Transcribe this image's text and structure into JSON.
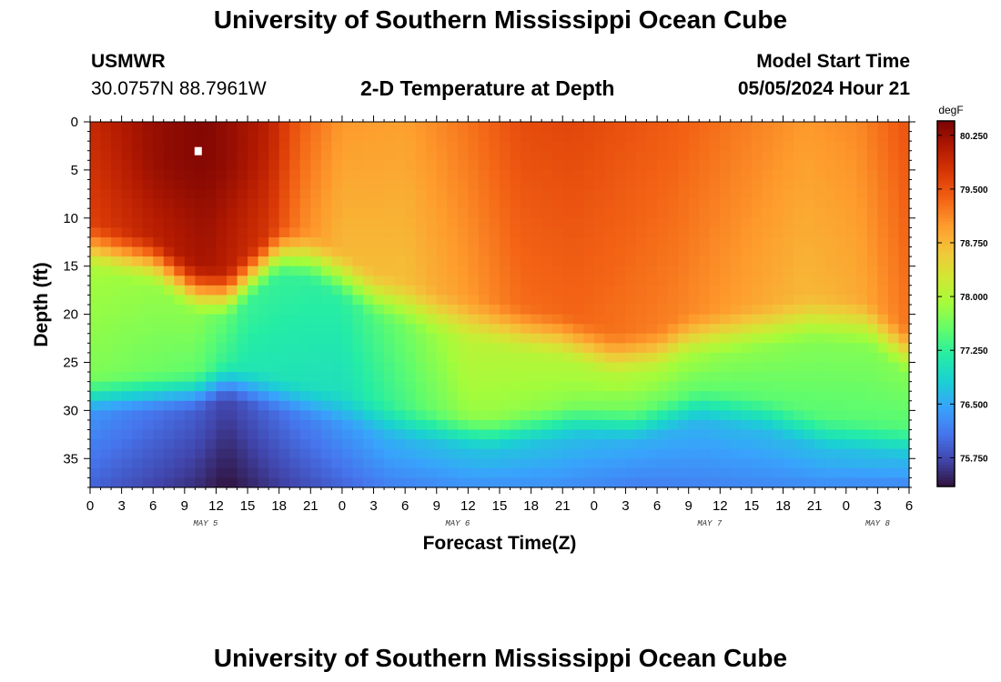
{
  "page": {
    "title": "University of Southern Mississippi Ocean Cube",
    "station_id": "USMWR",
    "coordinates": "30.0757N  88.7961W",
    "center_title": "2-D Temperature at Depth",
    "model_label": "Model Start Time",
    "model_time": "05/05/2024 Hour 21",
    "footer_title": "University of Southern Mississippi Ocean Cube"
  },
  "chart_data": {
    "type": "heatmap",
    "title": "2-D Temperature at Depth",
    "xlabel": "Forecast Time(Z)",
    "ylabel": "Depth (ft)",
    "x_ticks": [
      "0",
      "3",
      "6",
      "9",
      "12",
      "15",
      "18",
      "21",
      "0",
      "3",
      "6",
      "9",
      "12",
      "15",
      "18",
      "21",
      "0",
      "3",
      "6",
      "9",
      "12",
      "15",
      "18",
      "21",
      "0",
      "3",
      "6"
    ],
    "x_range_hours": [
      0,
      78
    ],
    "day_labels": [
      {
        "text": "MAY 5",
        "hour": 11
      },
      {
        "text": "MAY 6",
        "hour": 35
      },
      {
        "text": "MAY 7",
        "hour": 59
      },
      {
        "text": "MAY 8",
        "hour": 75
      }
    ],
    "y_ticks": [
      "0",
      "5",
      "10",
      "15",
      "20",
      "25",
      "30",
      "35"
    ],
    "y_range_ft": [
      0,
      38
    ],
    "colorbar": {
      "units": "degF",
      "range": [
        75.35,
        80.45
      ],
      "tick_values": [
        80.25,
        79.5,
        78.75,
        78.0,
        77.25,
        76.5,
        75.75
      ],
      "tick_labels": [
        "80.250",
        "79.500",
        "78.750",
        "78.000",
        "77.250",
        "76.500",
        "75.750"
      ],
      "colormap": [
        "#30123b",
        "#4145ab",
        "#4675ed",
        "#39a2fc",
        "#1bcfd4",
        "#24eca6",
        "#61fc6c",
        "#a4fc3b",
        "#d1e834",
        "#f3c63a",
        "#fe9b2d",
        "#f36315",
        "#d93806",
        "#b11901",
        "#7a0403"
      ]
    },
    "thermocline_depth_ft": [
      {
        "hour": 0,
        "depth": 13.0
      },
      {
        "hour": 6,
        "depth": 14.5
      },
      {
        "hour": 10,
        "depth": 17.5
      },
      {
        "hour": 13,
        "depth": 18.0
      },
      {
        "hour": 18,
        "depth": 13.5
      },
      {
        "hour": 21,
        "depth": 14.0
      },
      {
        "hour": 27,
        "depth": 18.0
      },
      {
        "hour": 33,
        "depth": 20.0
      },
      {
        "hour": 40,
        "depth": 21.5
      },
      {
        "hour": 45,
        "depth": 22.5
      },
      {
        "hour": 50,
        "depth": 24.5
      },
      {
        "hour": 54,
        "depth": 24.0
      },
      {
        "hour": 57,
        "depth": 22.5
      },
      {
        "hour": 63,
        "depth": 21.5
      },
      {
        "hour": 69,
        "depth": 20.5
      },
      {
        "hour": 74,
        "depth": 21.0
      },
      {
        "hour": 78,
        "depth": 24.0
      }
    ],
    "surface_temp_degF": [
      {
        "hour": 0,
        "temp": 79.9
      },
      {
        "hour": 6,
        "temp": 80.25
      },
      {
        "hour": 11,
        "temp": 80.4
      },
      {
        "hour": 17,
        "temp": 80.0
      },
      {
        "hour": 20,
        "temp": 79.4
      },
      {
        "hour": 24,
        "temp": 79.0
      },
      {
        "hour": 30,
        "temp": 78.95
      },
      {
        "hour": 36,
        "temp": 79.25
      },
      {
        "hour": 41,
        "temp": 79.55
      },
      {
        "hour": 46,
        "temp": 79.6
      },
      {
        "hour": 51,
        "temp": 79.5
      },
      {
        "hour": 56,
        "temp": 79.4
      },
      {
        "hour": 62,
        "temp": 79.2
      },
      {
        "hour": 68,
        "temp": 79.0
      },
      {
        "hour": 73,
        "temp": 79.1
      },
      {
        "hour": 78,
        "temp": 79.5
      }
    ],
    "mid_temp_degF": [
      {
        "hour": 0,
        "temp": 77.9
      },
      {
        "hour": 10,
        "temp": 77.75
      },
      {
        "hour": 15,
        "temp": 77.3
      },
      {
        "hour": 24,
        "temp": 77.2
      },
      {
        "hour": 30,
        "temp": 77.6
      },
      {
        "hour": 36,
        "temp": 78.05
      },
      {
        "hour": 44,
        "temp": 78.0
      },
      {
        "hour": 52,
        "temp": 77.9
      },
      {
        "hour": 60,
        "temp": 77.75
      },
      {
        "hour": 70,
        "temp": 77.7
      },
      {
        "hour": 78,
        "temp": 77.7
      }
    ],
    "deep_temp_degF": [
      {
        "hour": 0,
        "temp": 76.3
      },
      {
        "hour": 10,
        "temp": 75.9
      },
      {
        "hour": 13,
        "temp": 75.7
      },
      {
        "hour": 18,
        "temp": 76.0
      },
      {
        "hour": 28,
        "temp": 76.5
      },
      {
        "hour": 36,
        "temp": 76.65
      },
      {
        "hour": 44,
        "temp": 76.65
      },
      {
        "hour": 52,
        "temp": 76.5
      },
      {
        "hour": 60,
        "temp": 76.55
      },
      {
        "hour": 70,
        "temp": 76.6
      },
      {
        "hour": 78,
        "temp": 76.55
      }
    ],
    "deep_depth_ft": [
      {
        "hour": 0,
        "depth": 28.0
      },
      {
        "hour": 10,
        "depth": 27.5
      },
      {
        "hour": 13,
        "depth": 26.5
      },
      {
        "hour": 20,
        "depth": 28.5
      },
      {
        "hour": 30,
        "depth": 31.0
      },
      {
        "hour": 38,
        "depth": 32.0
      },
      {
        "hour": 46,
        "depth": 30.5
      },
      {
        "hour": 52,
        "depth": 31.0
      },
      {
        "hour": 58,
        "depth": 29.0
      },
      {
        "hour": 64,
        "depth": 30.0
      },
      {
        "hour": 70,
        "depth": 32.0
      },
      {
        "hour": 78,
        "depth": 33.0
      }
    ],
    "warm_core": {
      "hour": 10,
      "depth": 4,
      "temp": 80.4
    },
    "marker": {
      "hour": 10.3,
      "depth": 3.0
    }
  }
}
